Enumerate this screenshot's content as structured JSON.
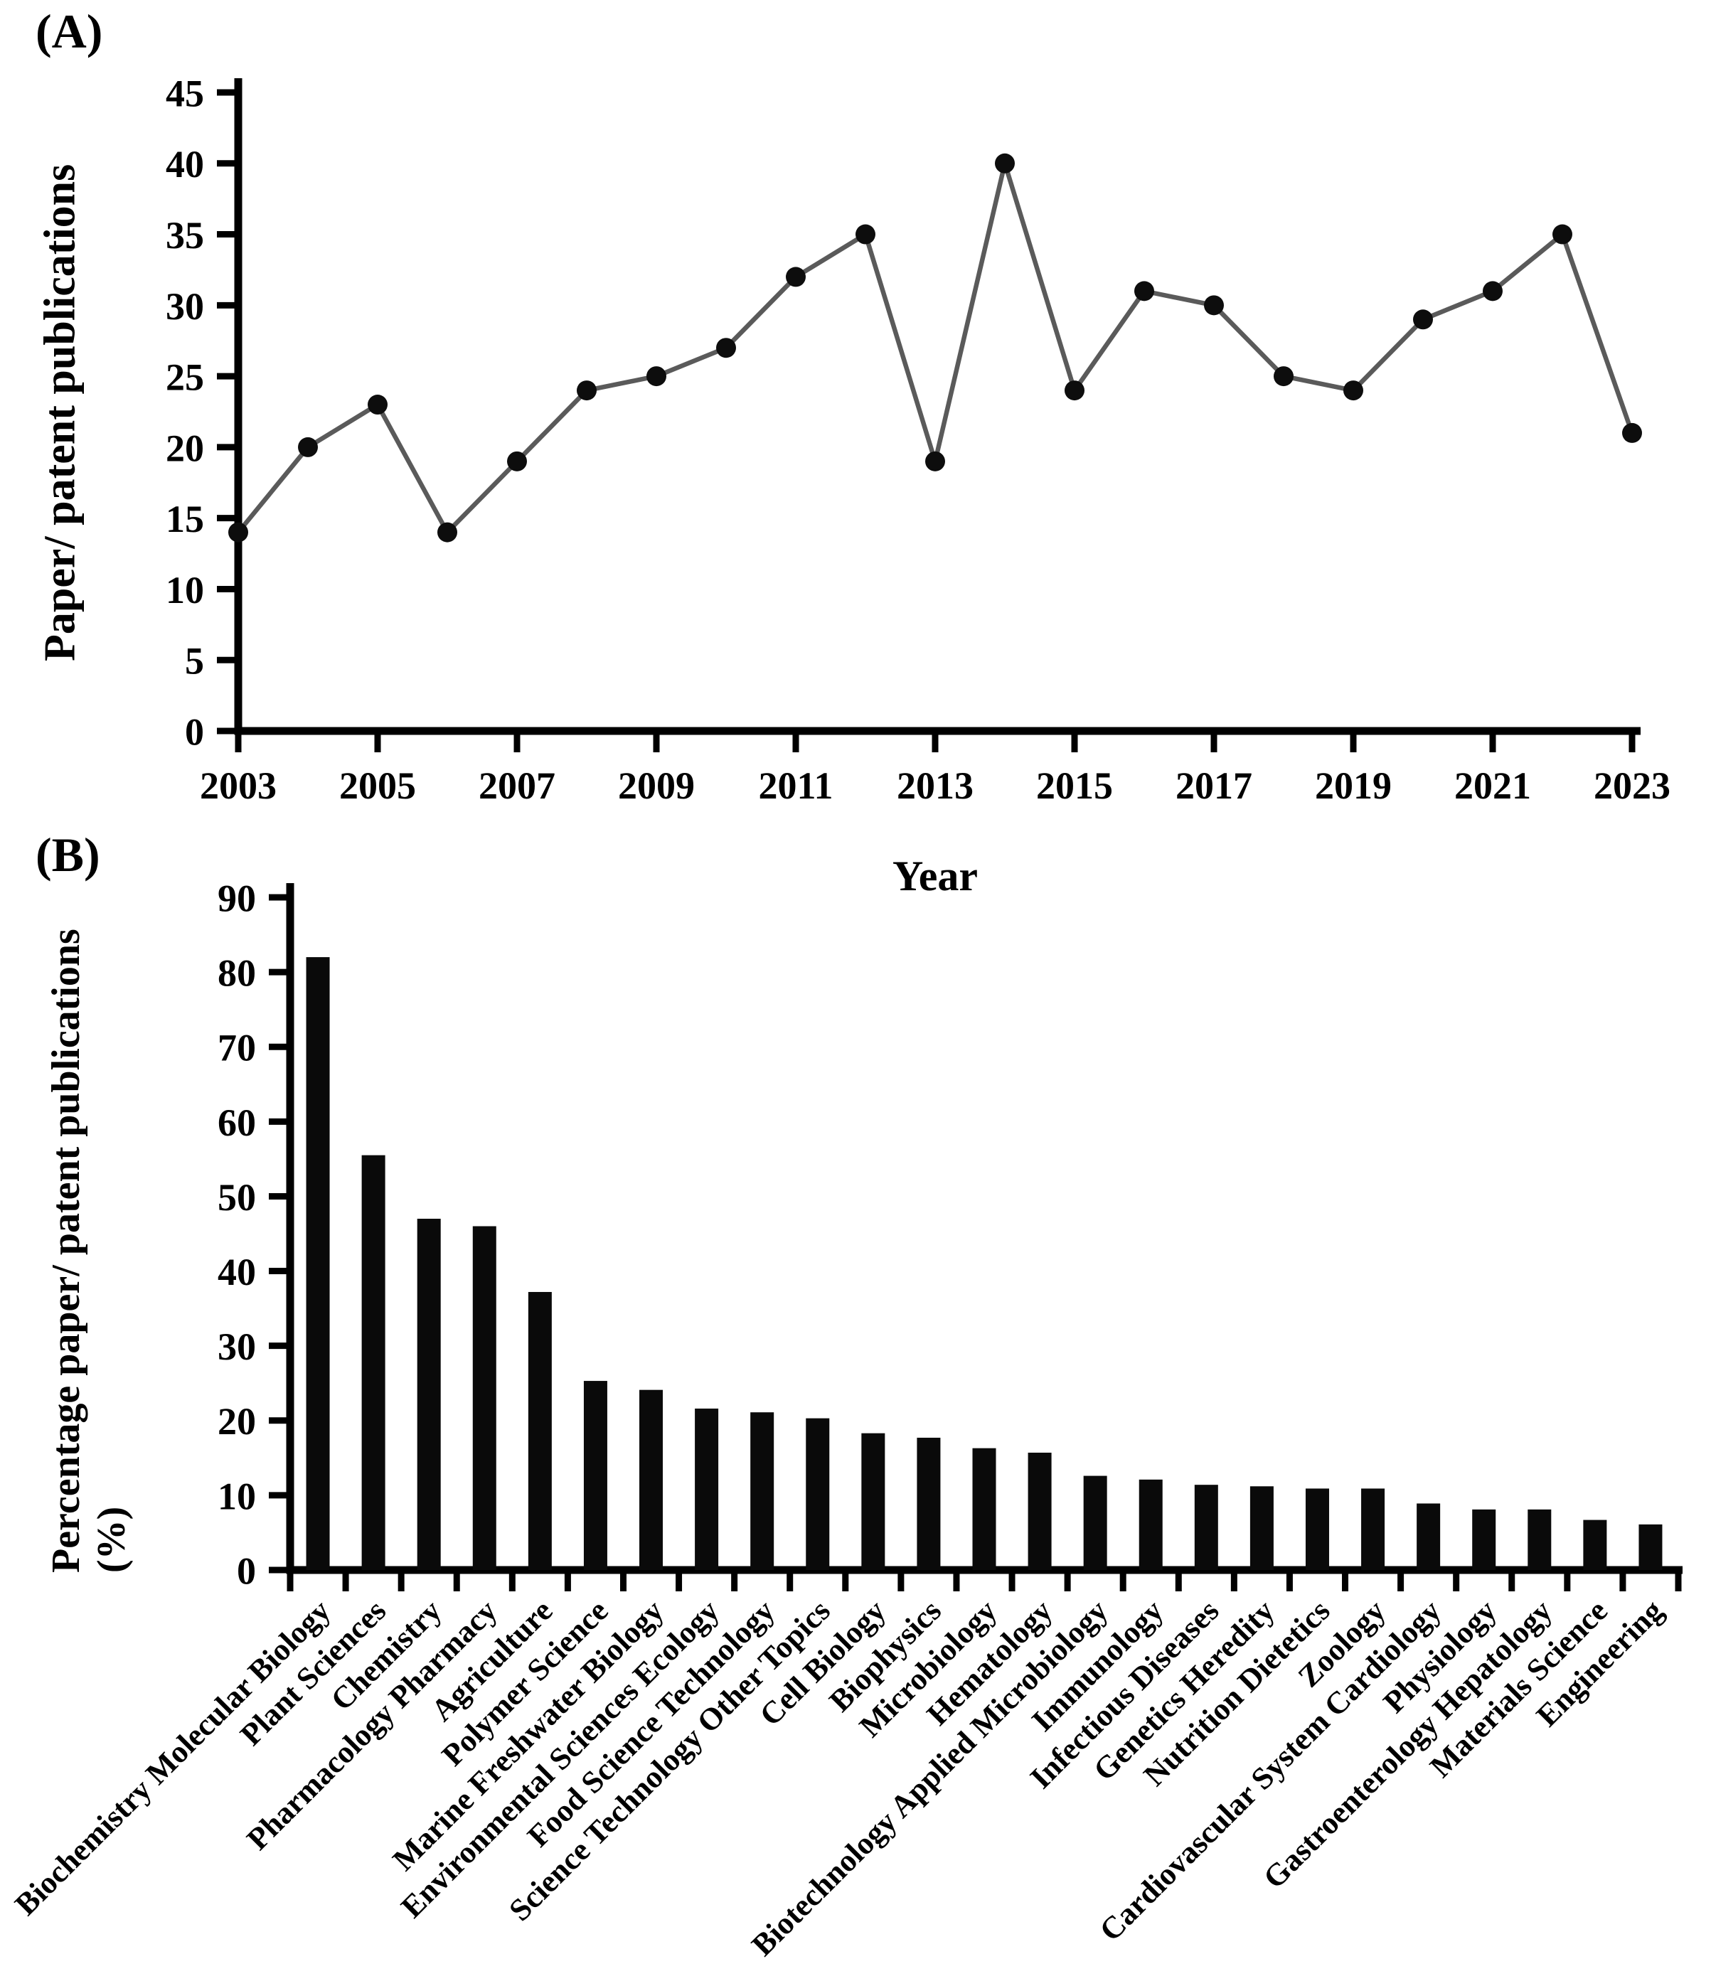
{
  "figure": {
    "panel_a": {
      "label": "(A)",
      "y_axis_title": "Paper/ patent publications",
      "x_axis_title": "Year"
    },
    "panel_b": {
      "label": "(B)",
      "y_axis_title": "Percentage paper/ patent publications (%)"
    },
    "colors": {
      "line": "#5a5a5a",
      "marker": "#0d0d0d",
      "bar": "#0a0a0a",
      "axis": "#000000"
    }
  },
  "chart_data": [
    {
      "id": "panel_a_line",
      "type": "line",
      "title": "",
      "xlabel": "Year",
      "ylabel": "Paper/ patent publications",
      "x": [
        2003,
        2004,
        2005,
        2006,
        2007,
        2008,
        2009,
        2010,
        2011,
        2012,
        2013,
        2014,
        2015,
        2016,
        2017,
        2018,
        2019,
        2020,
        2021,
        2022,
        2023
      ],
      "values": [
        14,
        20,
        23,
        14,
        19,
        24,
        25,
        27,
        32,
        35,
        19,
        40,
        24,
        31,
        30,
        25,
        24,
        29,
        31,
        35,
        21
      ],
      "ylim": [
        0,
        45
      ],
      "y_tick_step": 5,
      "y_tick_labels": [
        "0",
        "5",
        "10",
        "15",
        "20",
        "25",
        "30",
        "35",
        "40",
        "45"
      ],
      "x_tick_labels": [
        "2003",
        "2005",
        "2007",
        "2009",
        "2011",
        "2013",
        "2015",
        "2017",
        "2019",
        "2021",
        "2023"
      ],
      "grid": false,
      "legend": "none",
      "line_color": "#5a5a5a",
      "marker_color": "#0d0d0d"
    },
    {
      "id": "panel_b_bar",
      "type": "bar",
      "title": "",
      "xlabel": "",
      "ylabel": "Percentage paper/ patent publications (%)",
      "categories": [
        "Biochemistry Molecular Biology",
        "Plant Sciences",
        "Chemistry",
        "Pharmacology Pharmacy",
        "Agriculture",
        "Polymer Science",
        "Marine Freshwater Biology",
        "Environmental Sciences Ecology",
        "Food Science Technology",
        "Science Technology Other Topics",
        "Cell Biology",
        "Biophysics",
        "Microbiology",
        "Hematology",
        "Biotechnology Applied Microbiology",
        "Immunology",
        "Infectious Diseases",
        "Genetics Heredity",
        "Nutrition Dietetics",
        "Zoology",
        "Cardiovascular System Cardiology",
        "Physiology",
        "Gastroenterology Hepatology",
        "Materials Science",
        "Engineering"
      ],
      "values": [
        82,
        55.5,
        47,
        46,
        37.2,
        25.3,
        24.1,
        21.6,
        21.1,
        20.3,
        18.3,
        17.7,
        16.3,
        15.7,
        12.6,
        12.1,
        11.4,
        11.2,
        10.9,
        10.9,
        8.9,
        8.1,
        8.1,
        6.7,
        6.1
      ],
      "ylim": [
        0,
        90
      ],
      "y_tick_step": 10,
      "y_tick_labels": [
        "0",
        "10",
        "20",
        "30",
        "40",
        "50",
        "60",
        "70",
        "80",
        "90"
      ],
      "grid": false,
      "legend": "none",
      "bar_color": "#0a0a0a"
    }
  ]
}
